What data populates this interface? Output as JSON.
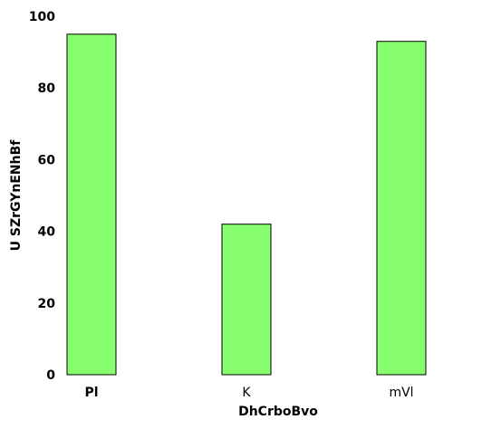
{
  "chart_data": {
    "type": "bar",
    "categories": [
      "Pl",
      "K",
      "mVl"
    ],
    "values": [
      95,
      42,
      93
    ],
    "xlabel": "DhCrboBvo",
    "ylabel": "U SZrGYnENhBf",
    "ylim": [
      0,
      100
    ],
    "yticks": [
      "0",
      "20",
      "40",
      "60",
      "80",
      "100"
    ],
    "grid": false,
    "bar_color": "#88ff6e",
    "bar_edge_color": "#000000"
  }
}
